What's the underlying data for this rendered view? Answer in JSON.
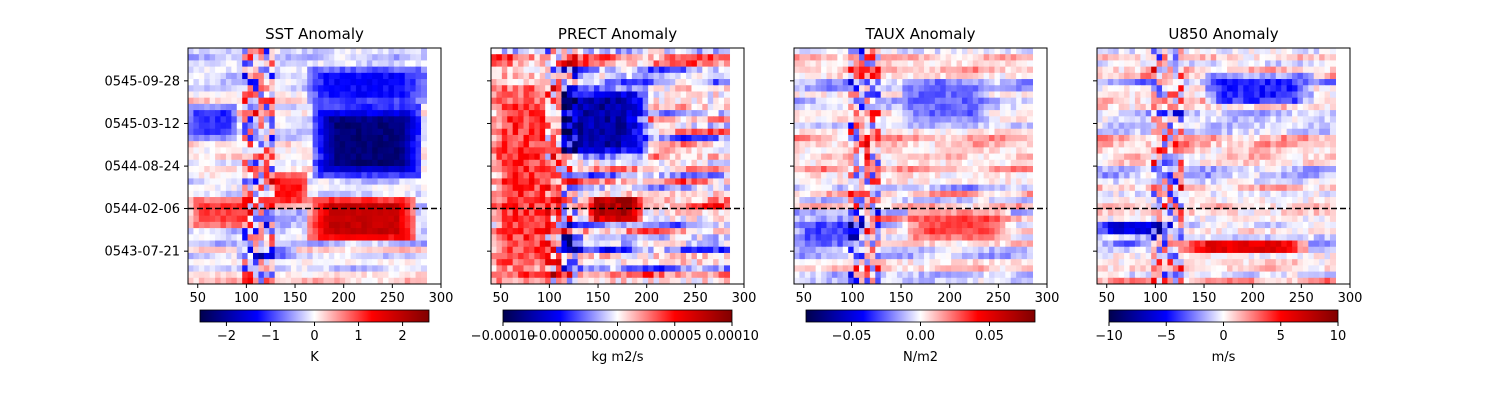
{
  "chart_data": [
    {
      "type": "heatmap",
      "title": "SST Anomaly",
      "xlabel": "",
      "ylabel": "",
      "xlim": [
        40,
        300
      ],
      "xticks": [
        50,
        100,
        150,
        200,
        250,
        300
      ],
      "data_x_range": [
        40,
        285
      ],
      "yticks": [
        "0545-09-28",
        "0545-03-12",
        "0544-08-24",
        "0544-02-06",
        "0543-07-21"
      ],
      "show_yticklabels": true,
      "reference_line": "0544-02-06",
      "colormap": "seismic",
      "colorbar": {
        "label": "K",
        "range": [
          -2.6,
          2.6
        ],
        "ticks": [
          -2,
          -1,
          0,
          1,
          2
        ],
        "ticklabels": [
          "−2",
          "−1",
          "0",
          "1",
          "2"
        ]
      },
      "features": [
        {
          "x": [
            170,
            280
          ],
          "y": [
            "0545-06-01",
            "0544-07-01"
          ],
          "value": -2.3
        },
        {
          "x": [
            160,
            285
          ],
          "y": [
            "0545-12-01",
            "0545-06-01"
          ],
          "value": -1.3
        },
        {
          "x": [
            165,
            275
          ],
          "y": [
            "0544-04-01",
            "0543-09-01"
          ],
          "value": 1.9
        },
        {
          "x": [
            120,
            165
          ],
          "y": [
            "0544-08-01",
            "0544-02-15"
          ],
          "value": 1.2
        },
        {
          "x": [
            40,
            110
          ],
          "y": [
            "0544-04-01",
            "0543-11-01"
          ],
          "value": 1.0
        },
        {
          "x": [
            40,
            90
          ],
          "y": [
            "0545-06-01",
            "0545-01-01"
          ],
          "value": -1.1
        },
        {
          "x": [
            90,
            150
          ],
          "y": [
            "0543-08-15",
            "0543-06-01"
          ],
          "value": -0.8
        }
      ]
    },
    {
      "type": "heatmap",
      "title": "PRECT Anomaly",
      "xlabel": "",
      "ylabel": "",
      "xlim": [
        40,
        300
      ],
      "xticks": [
        50,
        100,
        150,
        200,
        250,
        300
      ],
      "data_x_range": [
        40,
        285
      ],
      "yticks": [
        "0545-09-28",
        "0545-03-12",
        "0544-08-24",
        "0544-02-06",
        "0543-07-21"
      ],
      "show_yticklabels": false,
      "reference_line": "0544-02-06",
      "colormap": "seismic",
      "colorbar": {
        "label": "kg m2/s",
        "range": [
          -0.0001,
          0.0001
        ],
        "ticks": [
          -0.0001,
          -5e-05,
          0,
          5e-05,
          0.0001
        ],
        "ticklabels": [
          "−0.00010",
          "−0.00005",
          "0.00000",
          "0.00005",
          "0.00010"
        ]
      },
      "features": [
        {
          "x": [
            90,
            200
          ],
          "y": [
            "0545-09-01",
            "0544-10-01"
          ],
          "value": -7.5e-05
        },
        {
          "x": [
            140,
            195
          ],
          "y": [
            "0544-04-15",
            "0543-12-01"
          ],
          "value": 8e-05
        },
        {
          "x": [
            70,
            135
          ],
          "y": [
            "0543-10-01",
            "0543-07-15"
          ],
          "value": -7e-05
        },
        {
          "x": [
            40,
            115
          ],
          "y": [
            "0545-12-01",
            "0543-01-01"
          ],
          "value": 4e-05
        }
      ]
    },
    {
      "type": "heatmap",
      "title": "TAUX Anomaly",
      "xlabel": "",
      "ylabel": "",
      "xlim": [
        40,
        300
      ],
      "xticks": [
        50,
        100,
        150,
        200,
        250,
        300
      ],
      "data_x_range": [
        40,
        285
      ],
      "yticks": [
        "0545-09-28",
        "0545-03-12",
        "0544-08-24",
        "0544-02-06",
        "0543-07-21"
      ],
      "show_yticklabels": false,
      "reference_line": "0544-02-06",
      "colormap": "seismic",
      "colorbar": {
        "label": "N/m2",
        "range": [
          -0.083,
          0.083
        ],
        "ticks": [
          -0.05,
          0,
          0.05
        ],
        "ticklabels": [
          "−0.05",
          "0.00",
          "0.05"
        ]
      },
      "features": [
        {
          "x": [
            155,
            260
          ],
          "y": [
            "0544-02-01",
            "0543-09-01"
          ],
          "value": 0.03
        },
        {
          "x": [
            40,
            115
          ],
          "y": [
            "0544-01-01",
            "0543-08-01"
          ],
          "value": -0.03
        },
        {
          "x": [
            150,
            240
          ],
          "y": [
            "0545-10-01",
            "0545-03-01"
          ],
          "value": -0.025
        }
      ]
    },
    {
      "type": "heatmap",
      "title": "U850 Anomaly",
      "xlabel": "",
      "ylabel": "",
      "xlim": [
        40,
        300
      ],
      "xticks": [
        50,
        100,
        150,
        200,
        250,
        300
      ],
      "data_x_range": [
        40,
        285
      ],
      "yticks": [
        "0545-09-28",
        "0545-03-12",
        "0544-08-24",
        "0544-02-06",
        "0543-07-21"
      ],
      "show_yticklabels": false,
      "reference_line": "0544-02-06",
      "colormap": "seismic",
      "colorbar": {
        "label": "m/s",
        "range": [
          -10,
          10
        ],
        "ticks": [
          -10,
          -5,
          0,
          5,
          10
        ],
        "ticklabels": [
          "−10",
          "−5",
          "0",
          "5",
          "10"
        ]
      },
      "features": [
        {
          "x": [
            130,
            255
          ],
          "y": [
            "0543-09-15",
            "0543-07-01"
          ],
          "value": 6
        },
        {
          "x": [
            40,
            125
          ],
          "y": [
            "0543-12-15",
            "0543-10-01"
          ],
          "value": -6
        },
        {
          "x": [
            150,
            260
          ],
          "y": [
            "0545-11-01",
            "0545-06-01"
          ],
          "value": -4.5
        }
      ]
    }
  ]
}
